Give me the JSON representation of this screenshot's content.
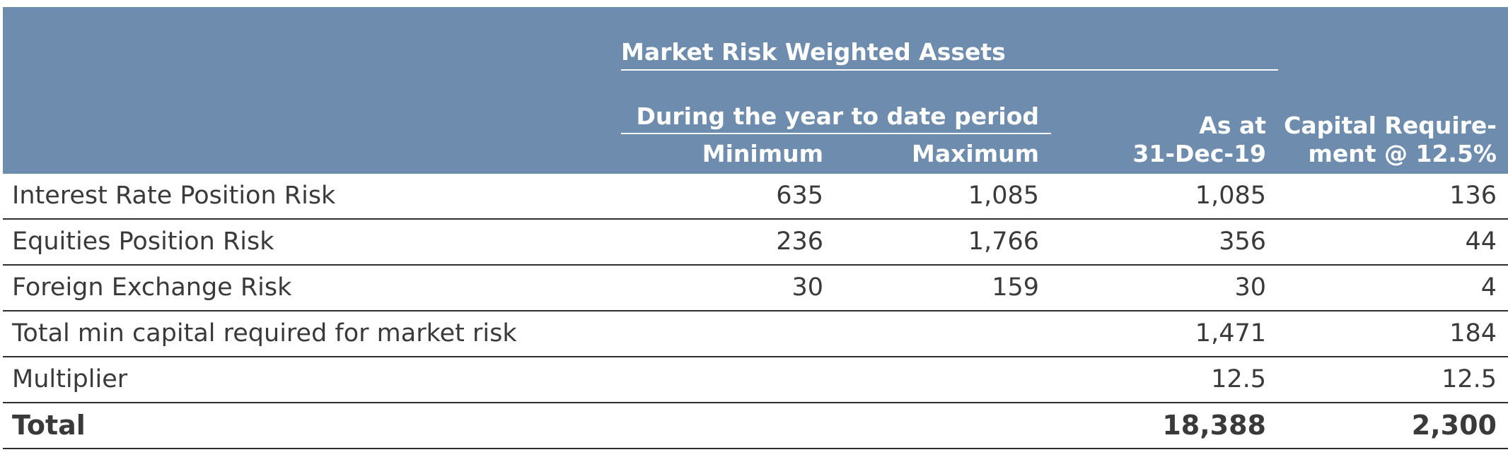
{
  "header": {
    "group_title": "Market Risk Weighted Assets",
    "sub_group_title": "During the year to date period",
    "col_min": "Minimum",
    "col_max": "Maximum",
    "col_asat_line1": "As at",
    "col_asat_line2": "31-Dec-19",
    "col_cap_line1": "Capital Require-",
    "col_cap_line2": "ment @ 12.5%"
  },
  "rows": [
    {
      "label": "Interest Rate Position Risk",
      "min": "635",
      "max": "1,085",
      "asat": "1,085",
      "cap": "136"
    },
    {
      "label": "Equities Position Risk",
      "min": "236",
      "max": "1,766",
      "asat": "356",
      "cap": "44"
    },
    {
      "label": "Foreign Exchange Risk",
      "min": "30",
      "max": "159",
      "asat": "30",
      "cap": "4"
    },
    {
      "label": "Total min capital required for market risk",
      "min": "",
      "max": "",
      "asat": "1,471",
      "cap": "184"
    },
    {
      "label": "Multiplier",
      "min": "",
      "max": "",
      "asat": "12.5",
      "cap": "12.5"
    },
    {
      "label": "Total",
      "min": "",
      "max": "",
      "asat": "18,388",
      "cap": "2,300"
    }
  ],
  "colors": {
    "header_bg": "#6e8cad",
    "header_text": "#ffffff",
    "body_text": "#3a3a3a",
    "rule": "#2e2e2e"
  }
}
